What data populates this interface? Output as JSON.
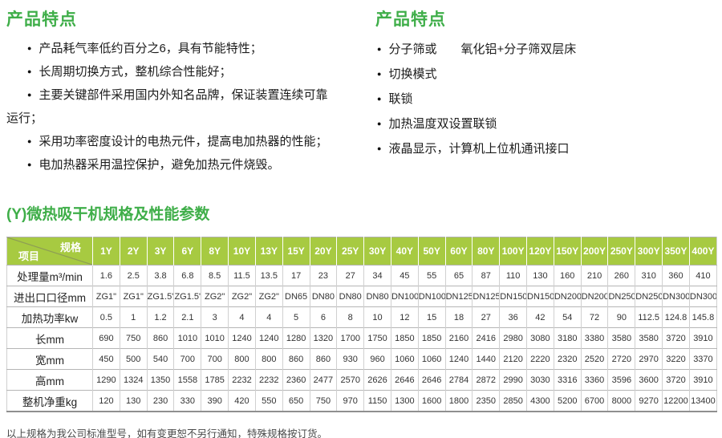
{
  "features_left": {
    "title": "产品特点",
    "items": [
      "产品耗气率低约百分之6，具有节能特性；",
      "长周期切换方式，整机综合性能好；",
      "主要关键部件采用国内外知名品牌，保证装置连续可靠\n运行；",
      "采用功率密度设计的电热元件，提高电加热器的性能；",
      "电加热器采用温控保护，避免加热元件烧毁。"
    ]
  },
  "features_right": {
    "title": "产品特点",
    "items": [
      "分子筛或　　氧化铝+分子筛双层床",
      "切换模式",
      "联锁",
      "加热温度双设置联锁",
      "液晶显示，计算机上位机通讯接口"
    ]
  },
  "table": {
    "title": "(Y)微热吸干机规格及性能参数",
    "corner": {
      "top": "规格",
      "bottom": "项目"
    },
    "columns": [
      "1Y",
      "2Y",
      "3Y",
      "6Y",
      "8Y",
      "10Y",
      "13Y",
      "15Y",
      "20Y",
      "25Y",
      "30Y",
      "40Y",
      "50Y",
      "60Y",
      "80Y",
      "100Y",
      "120Y",
      "150Y",
      "200Y",
      "250Y",
      "300Y",
      "350Y",
      "400Y"
    ],
    "rows": [
      {
        "label": "处理量m³/min",
        "values": [
          "1.6",
          "2.5",
          "3.8",
          "6.8",
          "8.5",
          "11.5",
          "13.5",
          "17",
          "23",
          "27",
          "34",
          "45",
          "55",
          "65",
          "87",
          "110",
          "130",
          "160",
          "210",
          "260",
          "310",
          "360",
          "410"
        ]
      },
      {
        "label": "进出口口径mm",
        "values": [
          "ZG1\"",
          "ZG1\"",
          "ZG1.5\"",
          "ZG1.5\"",
          "ZG2\"",
          "ZG2\"",
          "ZG2\"",
          "DN65",
          "DN80",
          "DN80",
          "DN80",
          "DN100",
          "DN100",
          "DN125",
          "DN125",
          "DN150",
          "DN150",
          "DN200",
          "DN200",
          "DN250",
          "DN250",
          "DN300",
          "DN300"
        ]
      },
      {
        "label": "加热功率kw",
        "values": [
          "0.5",
          "1",
          "1.2",
          "2.1",
          "3",
          "4",
          "4",
          "5",
          "6",
          "8",
          "10",
          "12",
          "15",
          "18",
          "27",
          "36",
          "42",
          "54",
          "72",
          "90",
          "112.5",
          "124.8",
          "145.8"
        ]
      },
      {
        "label": "长mm",
        "values": [
          "690",
          "750",
          "860",
          "1010",
          "1010",
          "1240",
          "1240",
          "1280",
          "1320",
          "1700",
          "1750",
          "1850",
          "1850",
          "2160",
          "2416",
          "2980",
          "3080",
          "3180",
          "3380",
          "3580",
          "3580",
          "3720",
          "3910"
        ]
      },
      {
        "label": "宽mm",
        "values": [
          "450",
          "500",
          "540",
          "700",
          "700",
          "800",
          "800",
          "860",
          "860",
          "930",
          "960",
          "1060",
          "1060",
          "1240",
          "1440",
          "2120",
          "2220",
          "2320",
          "2520",
          "2720",
          "2970",
          "3220",
          "3370"
        ]
      },
      {
        "label": "高mm",
        "values": [
          "1290",
          "1324",
          "1350",
          "1558",
          "1785",
          "2232",
          "2232",
          "2360",
          "2477",
          "2570",
          "2626",
          "2646",
          "2646",
          "2784",
          "2872",
          "2990",
          "3030",
          "3316",
          "3360",
          "3596",
          "3600",
          "3720",
          "3910"
        ]
      },
      {
        "label": "整机净重kg",
        "values": [
          "120",
          "130",
          "230",
          "330",
          "390",
          "420",
          "550",
          "650",
          "750",
          "970",
          "1150",
          "1300",
          "1600",
          "1800",
          "2350",
          "2850",
          "4300",
          "5200",
          "6700",
          "8000",
          "9270",
          "12200",
          "13400"
        ]
      }
    ]
  },
  "footer_note": "以上规格为我公司标准型号，如有变更恕不另行通知，特殊规格按订货。",
  "colors": {
    "heading_green": "#3fae49",
    "table_header_bg": "#a7ca41"
  }
}
